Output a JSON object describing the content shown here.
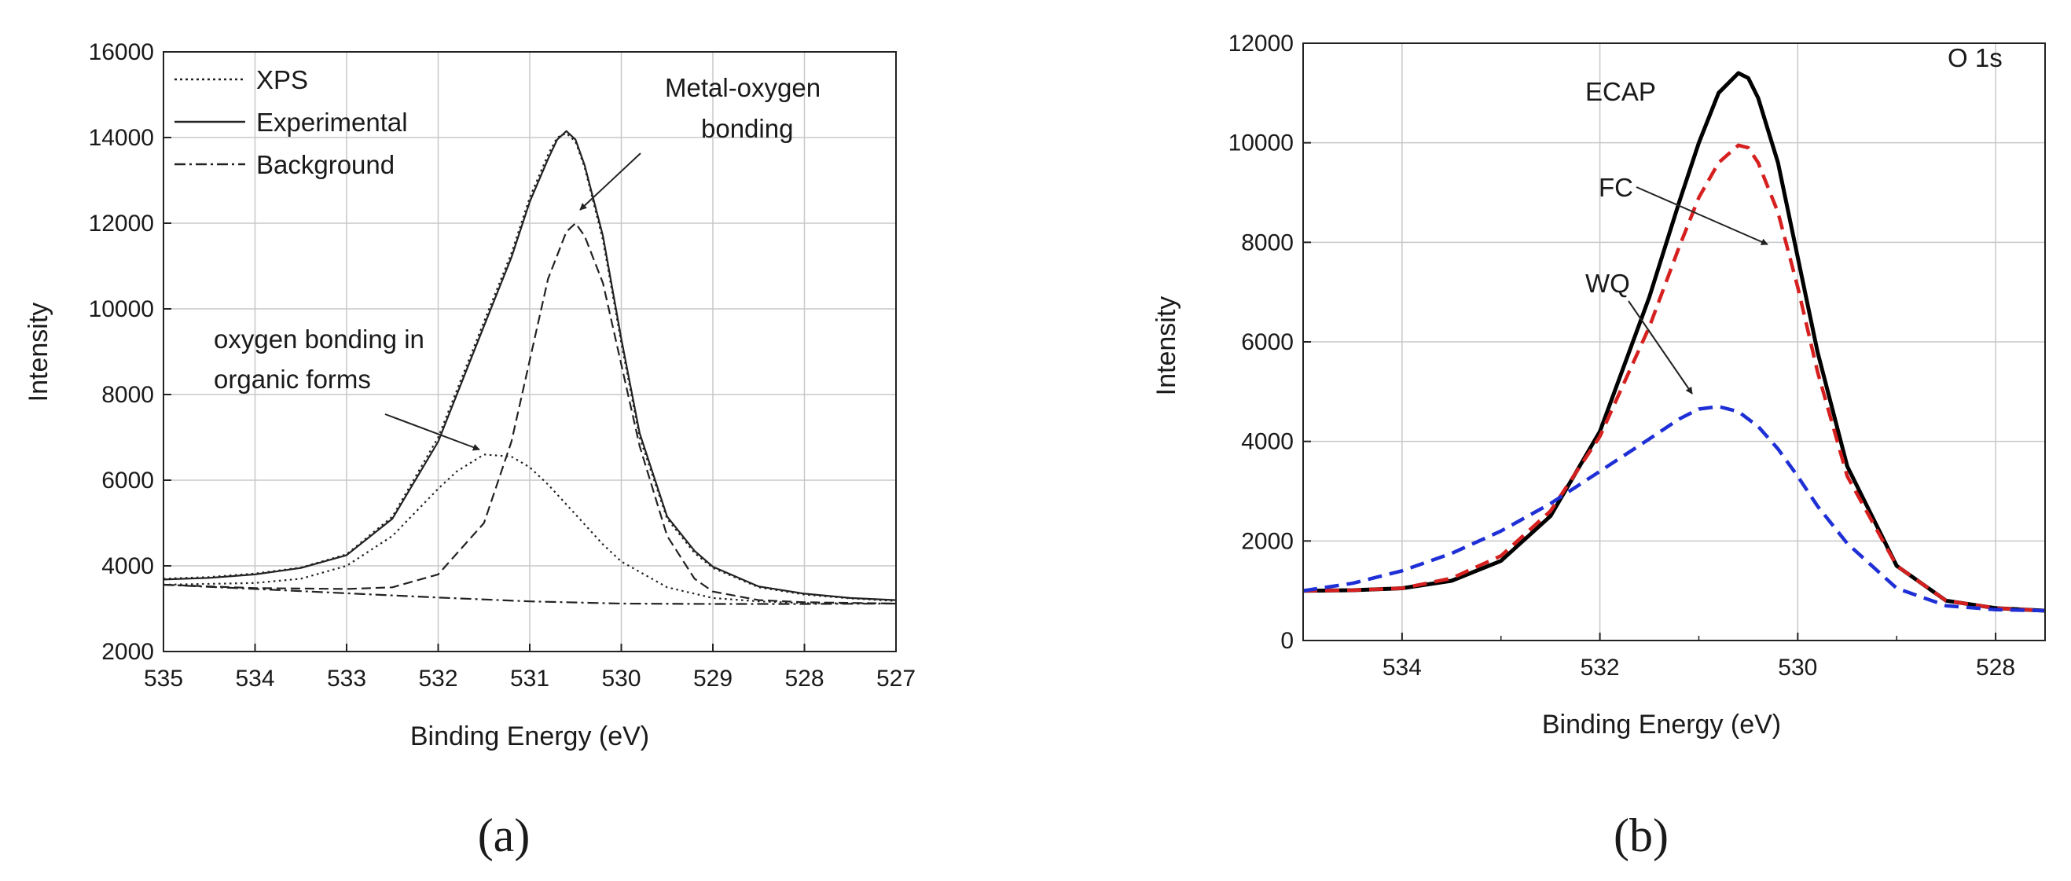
{
  "chart_data": [
    {
      "type": "line",
      "panel_label": "(a)",
      "xlabel": "Binding Energy (eV)",
      "ylabel": "Intensity",
      "xlim": [
        535,
        527
      ],
      "ylim": [
        2000,
        16000
      ],
      "x_ticks": [
        "535",
        "534",
        "533",
        "532",
        "531",
        "530",
        "529",
        "528",
        "527"
      ],
      "y_ticks": [
        "2000",
        "4000",
        "6000",
        "8000",
        "10000",
        "12000",
        "14000",
        "16000"
      ],
      "grid": true,
      "legend": {
        "position": "top-left",
        "entries": [
          {
            "label": "XPS",
            "style": "dotted"
          },
          {
            "label": "Experimental",
            "style": "solid"
          },
          {
            "label": "Background",
            "style": "dash-dot"
          }
        ]
      },
      "series": [
        {
          "name": "XPS",
          "style": "dotted",
          "color": "#222222",
          "x": [
            535,
            534.5,
            534,
            533.5,
            533,
            532.5,
            532,
            531.5,
            531.2,
            531,
            530.8,
            530.7,
            530.6,
            530.5,
            530.4,
            530.2,
            530,
            529.8,
            529.5,
            529.2,
            529,
            528.5,
            528,
            527.5,
            527
          ],
          "y": [
            3700,
            3740,
            3820,
            3960,
            4270,
            5150,
            7000,
            9700,
            11300,
            12600,
            13600,
            14000,
            14100,
            13900,
            13300,
            11600,
            9200,
            7000,
            5100,
            4300,
            3950,
            3500,
            3330,
            3240,
            3180
          ]
        },
        {
          "name": "Experimental",
          "style": "solid",
          "color": "#222222",
          "x": [
            535,
            534.5,
            534,
            533.5,
            533,
            532.5,
            532,
            531.5,
            531.2,
            531,
            530.8,
            530.7,
            530.6,
            530.5,
            530.4,
            530.2,
            530,
            529.8,
            529.5,
            529.2,
            529,
            528.5,
            528,
            527.5,
            527
          ],
          "y": [
            3680,
            3720,
            3800,
            3950,
            4250,
            5100,
            6900,
            9600,
            11200,
            12500,
            13500,
            13950,
            14150,
            13950,
            13350,
            11700,
            9300,
            7100,
            5150,
            4350,
            3980,
            3520,
            3350,
            3250,
            3200
          ]
        },
        {
          "name": "Background",
          "style": "dash-dot",
          "color": "#222222",
          "x": [
            535,
            534,
            533,
            532,
            531,
            530,
            529,
            528,
            527
          ],
          "y": [
            3560,
            3460,
            3360,
            3260,
            3170,
            3120,
            3110,
            3110,
            3120
          ]
        },
        {
          "name": "oxygen bonding in organic forms",
          "style": "dotted",
          "color": "#222222",
          "x": [
            535,
            534,
            533.5,
            533,
            532.5,
            532,
            531.8,
            531.5,
            531.2,
            531,
            530.8,
            530.5,
            530.2,
            530,
            529.5,
            529,
            528.5,
            528,
            527
          ],
          "y": [
            3560,
            3600,
            3700,
            4000,
            4700,
            5800,
            6200,
            6600,
            6550,
            6300,
            5900,
            5200,
            4500,
            4100,
            3500,
            3250,
            3170,
            3130,
            3120
          ]
        },
        {
          "name": "Metal-oxygen bonding",
          "style": "dashed",
          "color": "#222222",
          "x": [
            535,
            534,
            533,
            532.5,
            532,
            531.5,
            531.2,
            531,
            530.8,
            530.6,
            530.5,
            530.4,
            530.2,
            530,
            529.8,
            529.5,
            529.2,
            529,
            528.5,
            528,
            527
          ],
          "y": [
            3560,
            3480,
            3460,
            3500,
            3800,
            5000,
            6900,
            8800,
            10700,
            11800,
            12000,
            11700,
            10600,
            8700,
            6800,
            4700,
            3700,
            3400,
            3200,
            3150,
            3120
          ]
        }
      ],
      "annotations": [
        {
          "lines": [
            "Metal-oxygen",
            "bonding"
          ],
          "points_to": {
            "x": 530.5,
            "y": 12000
          }
        },
        {
          "lines": [
            "oxygen bonding in",
            "organic forms"
          ],
          "points_to": {
            "x": 531.5,
            "y": 6600
          }
        }
      ]
    },
    {
      "type": "line",
      "panel_label": "(b)",
      "xlabel": "Binding Energy (eV)",
      "ylabel": "Intensity",
      "xlim": [
        535,
        527.5
      ],
      "ylim": [
        0,
        12000
      ],
      "x_ticks": [
        "534",
        "532",
        "530",
        "528"
      ],
      "x_tick_values": [
        534,
        532,
        530,
        528
      ],
      "y_ticks": [
        "0",
        "2000",
        "4000",
        "6000",
        "8000",
        "10000",
        "12000"
      ],
      "grid": true,
      "inset_title": "O 1s",
      "series": [
        {
          "name": "ECAP",
          "style": "solid",
          "color": "#000000",
          "x": [
            535,
            534.5,
            534,
            533.5,
            533,
            532.5,
            532,
            531.5,
            531.2,
            531,
            530.8,
            530.6,
            530.5,
            530.4,
            530.2,
            530,
            529.8,
            529.5,
            529,
            528.5,
            528,
            527.5
          ],
          "y": [
            1000,
            1010,
            1050,
            1200,
            1600,
            2500,
            4200,
            6900,
            8800,
            10000,
            11000,
            11400,
            11300,
            10900,
            9600,
            7700,
            5800,
            3500,
            1500,
            800,
            650,
            600
          ]
        },
        {
          "name": "FC",
          "style": "dashed",
          "color": "#d62020",
          "x": [
            535,
            534.5,
            534,
            533.5,
            533,
            532.5,
            532,
            531.5,
            531.2,
            531,
            530.8,
            530.6,
            530.5,
            530.4,
            530.2,
            530,
            529.8,
            529.5,
            529,
            528.5,
            528,
            527.5
          ],
          "y": [
            1000,
            1010,
            1050,
            1250,
            1700,
            2600,
            4100,
            6300,
            7900,
            8900,
            9600,
            9950,
            9900,
            9600,
            8600,
            7100,
            5400,
            3300,
            1500,
            800,
            650,
            600
          ]
        },
        {
          "name": "WQ",
          "style": "dashed",
          "color": "#1f2fd6",
          "x": [
            535,
            534.5,
            534,
            533.5,
            533,
            532.5,
            532,
            531.5,
            531.2,
            531,
            530.8,
            530.6,
            530.4,
            530.2,
            530,
            529.8,
            529.5,
            529,
            528.5,
            528,
            527.5
          ],
          "y": [
            1000,
            1150,
            1400,
            1750,
            2200,
            2750,
            3400,
            4050,
            4450,
            4650,
            4700,
            4600,
            4300,
            3850,
            3300,
            2700,
            1950,
            1050,
            700,
            620,
            600
          ]
        }
      ],
      "annotations": [
        {
          "lines": [
            "ECAP"
          ],
          "points_to": null
        },
        {
          "lines": [
            "FC"
          ],
          "points_to": {
            "x": 529.9,
            "y": 7900
          }
        },
        {
          "lines": [
            "WQ"
          ],
          "points_to": {
            "x": 530.8,
            "y": 4750
          }
        }
      ]
    }
  ]
}
